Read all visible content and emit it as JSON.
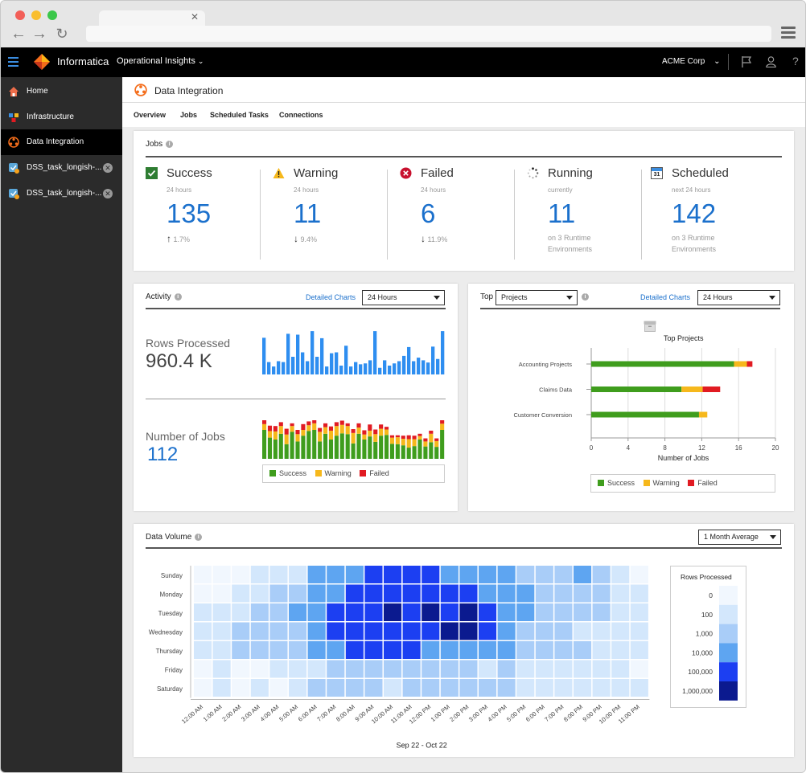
{
  "app": {
    "brand": "Informatica",
    "product": "Operational Insights",
    "org": "ACME Corp"
  },
  "sidebar": {
    "items": [
      {
        "label": "Home"
      },
      {
        "label": "Infrastructure"
      },
      {
        "label": "Data Integration"
      },
      {
        "label": "DSS_task_longish-..."
      },
      {
        "label": "DSS_task_longish-..."
      }
    ]
  },
  "page": {
    "title": "Data Integration",
    "tabs": [
      "Overview",
      "Jobs",
      "Scheduled Tasks",
      "Connections"
    ]
  },
  "jobs": {
    "title": "Jobs",
    "success": {
      "label": "Success",
      "sub": "24 hours",
      "value": "135",
      "delta": "1.7%"
    },
    "warning": {
      "label": "Warning",
      "sub": "24 hours",
      "value": "11",
      "delta": "9.4%"
    },
    "failed": {
      "label": "Failed",
      "sub": "24 hours",
      "value": "6",
      "delta": "11.9%"
    },
    "running": {
      "label": "Running",
      "sub": "currently",
      "value": "11",
      "foot": "on 3 Runtime Environments"
    },
    "scheduled": {
      "label": "Scheduled",
      "sub": "next 24 hours",
      "value": "142",
      "foot": "on 3 Runtime Environments",
      "cal_day": "31"
    }
  },
  "activity": {
    "title": "Activity",
    "link": "Detailed Charts",
    "range": "24 Hours",
    "rows_label": "Rows Processed",
    "rows_value": "960.4 K",
    "jobs_label": "Number of Jobs",
    "jobs_value": "112",
    "legend": {
      "success": "Success",
      "warning": "Warning",
      "failed": "Failed"
    },
    "rows_bars": [
      0.83,
      0.28,
      0.18,
      0.3,
      0.28,
      0.92,
      0.4,
      0.9,
      0.5,
      0.3,
      0.98,
      0.4,
      0.82,
      0.18,
      0.48,
      0.5,
      0.2,
      0.65,
      0.18,
      0.28,
      0.23,
      0.25,
      0.32,
      0.98,
      0.15,
      0.32,
      0.2,
      0.25,
      0.3,
      0.42,
      0.62,
      0.3,
      0.38,
      0.32,
      0.27,
      0.63,
      0.35,
      0.98
    ],
    "jobs_bars": [
      [
        0.75,
        0.15,
        0.1
      ],
      [
        0.55,
        0.17,
        0.14
      ],
      [
        0.5,
        0.21,
        0.14
      ],
      [
        0.65,
        0.2,
        0.1
      ],
      [
        0.38,
        0.25,
        0.15
      ],
      [
        0.7,
        0.15,
        0.07
      ],
      [
        0.45,
        0.19,
        0.11
      ],
      [
        0.6,
        0.15,
        0.15
      ],
      [
        0.72,
        0.15,
        0.1
      ],
      [
        0.75,
        0.17,
        0.08
      ],
      [
        0.45,
        0.25,
        0.1
      ],
      [
        0.65,
        0.17,
        0.1
      ],
      [
        0.5,
        0.23,
        0.11
      ],
      [
        0.6,
        0.25,
        0.1
      ],
      [
        0.66,
        0.22,
        0.11
      ],
      [
        0.64,
        0.21,
        0.07
      ],
      [
        0.4,
        0.27,
        0.1
      ],
      [
        0.65,
        0.16,
        0.11
      ],
      [
        0.5,
        0.13,
        0.11
      ],
      [
        0.58,
        0.15,
        0.16
      ],
      [
        0.44,
        0.2,
        0.12
      ],
      [
        0.6,
        0.18,
        0.11
      ],
      [
        0.62,
        0.14,
        0.07
      ],
      [
        0.39,
        0.16,
        0.06
      ],
      [
        0.38,
        0.18,
        0.05
      ],
      [
        0.35,
        0.17,
        0.08
      ],
      [
        0.29,
        0.22,
        0.1
      ],
      [
        0.33,
        0.18,
        0.09
      ],
      [
        0.5,
        0.09,
        0.06
      ],
      [
        0.32,
        0.13,
        0.08
      ],
      [
        0.43,
        0.22,
        0.08
      ],
      [
        0.31,
        0.15,
        0.07
      ],
      [
        0.75,
        0.16,
        0.1
      ]
    ]
  },
  "top": {
    "title": "Top",
    "select": "Projects",
    "link": "Detailed Charts",
    "range": "24 Hours",
    "icon": "archive-box-icon"
  },
  "volume": {
    "title": "Data Volume",
    "select": "1 Month Average"
  },
  "colors": {
    "success": "#3f9d1d",
    "warning": "#f6b81c",
    "failed": "#e11b22",
    "accent": "#1b70cc",
    "bar_blue": "#2e8ef0"
  },
  "chart_data": [
    {
      "type": "bar",
      "title": "Top Projects",
      "orientation": "horizontal",
      "categories": [
        "Accounting Projects",
        "Claims Data",
        "Customer Conversion"
      ],
      "series": [
        {
          "name": "Success",
          "values": [
            15.5,
            9.8,
            11.7
          ]
        },
        {
          "name": "Warning",
          "values": [
            1.4,
            2.3,
            0.9
          ]
        },
        {
          "name": "Failed",
          "values": [
            0.6,
            1.9,
            0
          ]
        }
      ],
      "xlabel": "Number of Jobs",
      "xlim": [
        0,
        20
      ],
      "xticks": [
        "0",
        "4",
        "8",
        "12",
        "16",
        "20"
      ]
    },
    {
      "type": "heatmap",
      "xlabel": "Sep 22 - Oct 22",
      "x": [
        "12:00 AM",
        "1:00 AM",
        "2:00 AM",
        "3:00 AM",
        "4:00 AM",
        "5:00 AM",
        "6:00 AM",
        "7:00 AM",
        "8:00 AM",
        "9:00 AM",
        "10:00 AM",
        "11:00 AM",
        "12:00 PM",
        "1:00 PM",
        "2:00 PM",
        "3:00 PM",
        "4:00 PM",
        "5:00 PM",
        "6:00 PM",
        "7:00 PM",
        "8:00 PM",
        "9:00 PM",
        "10:00 PM",
        "11:00 PM"
      ],
      "y": [
        "Sunday",
        "Monday",
        "Tuesday",
        "Wednesday",
        "Thursday",
        "Friday",
        "Saturday"
      ],
      "legend_title": "Rows Processed",
      "levels": [
        "0",
        "100",
        "1,000",
        "10,000",
        "100,000",
        "1,000,000"
      ],
      "level_colors": [
        "#f1f7fe",
        "#d3e7fc",
        "#a9cdf8",
        "#5ea5f1",
        "#1c3ff2",
        "#0b1a8f"
      ],
      "values": [
        [
          0,
          0,
          0,
          1,
          1,
          1,
          3,
          3,
          3,
          4,
          4,
          4,
          4,
          3,
          3,
          3,
          3,
          2,
          2,
          2,
          3,
          2,
          1,
          0
        ],
        [
          0,
          0,
          1,
          1,
          2,
          2,
          3,
          3,
          4,
          4,
          4,
          4,
          4,
          4,
          4,
          3,
          3,
          3,
          2,
          2,
          2,
          2,
          1,
          1
        ],
        [
          1,
          1,
          1,
          2,
          2,
          3,
          3,
          4,
          4,
          4,
          5,
          4,
          5,
          4,
          5,
          4,
          3,
          3,
          2,
          2,
          2,
          2,
          1,
          1
        ],
        [
          1,
          1,
          2,
          2,
          2,
          2,
          3,
          4,
          4,
          4,
          4,
          4,
          4,
          5,
          5,
          4,
          3,
          2,
          2,
          2,
          1,
          1,
          1,
          1
        ],
        [
          1,
          1,
          2,
          2,
          2,
          2,
          3,
          3,
          4,
          4,
          4,
          4,
          3,
          3,
          3,
          3,
          3,
          2,
          2,
          2,
          2,
          1,
          1,
          1
        ],
        [
          0,
          1,
          0,
          0,
          1,
          1,
          1,
          2,
          2,
          2,
          2,
          2,
          2,
          2,
          2,
          1,
          2,
          1,
          1,
          1,
          1,
          1,
          1,
          0
        ],
        [
          0,
          1,
          0,
          1,
          0,
          1,
          2,
          2,
          2,
          2,
          1,
          2,
          2,
          2,
          2,
          2,
          2,
          1,
          1,
          1,
          1,
          1,
          1,
          1
        ]
      ]
    }
  ]
}
